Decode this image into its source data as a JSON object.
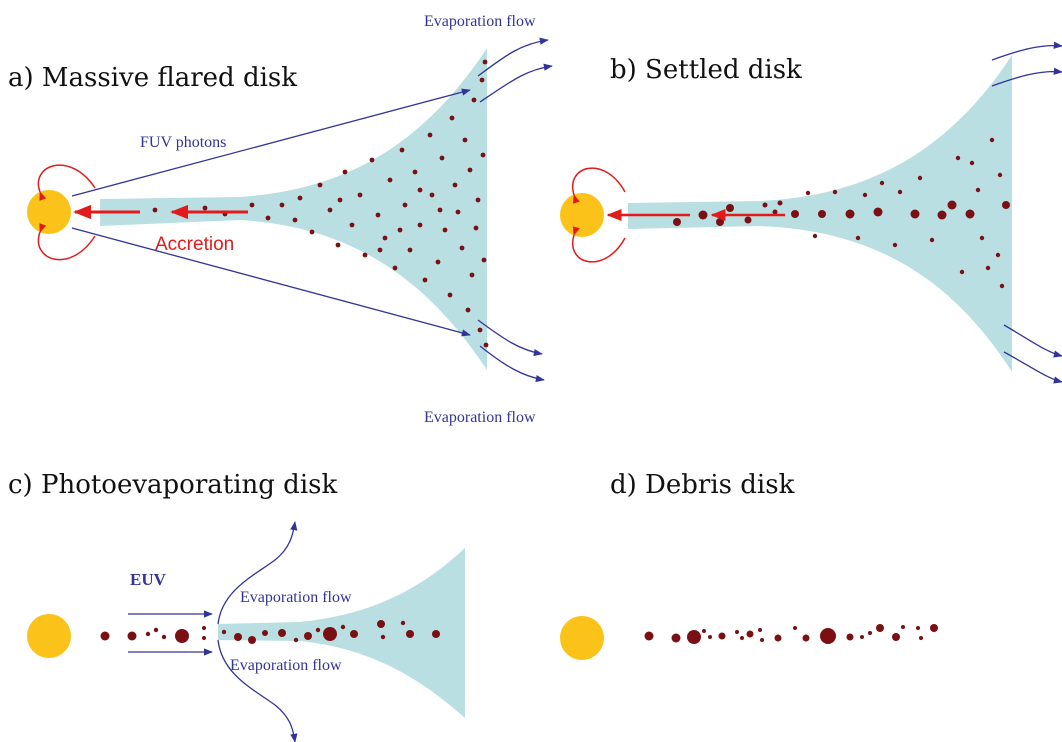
{
  "colors": {
    "disk": "#b9dfe2",
    "star": "#fbc219",
    "dust": "#7a1014",
    "flow": "#32349a",
    "accretion": "#e31a1c"
  },
  "panels": {
    "a": {
      "title": "a) Massive flared disk",
      "fuv_label": "FUV photons",
      "accretion_label": "Accretion",
      "evap_top_label": "Evaporation flow",
      "evap_bottom_label": "Evaporation flow"
    },
    "b": {
      "title": "b) Settled disk"
    },
    "c": {
      "title": "c) Photoevaporating disk",
      "euv_label": "EUV",
      "evap_top_label": "Evaporation flow",
      "evap_bottom_label": "Evaporation flow"
    },
    "d": {
      "title": "d) Debris disk"
    }
  }
}
